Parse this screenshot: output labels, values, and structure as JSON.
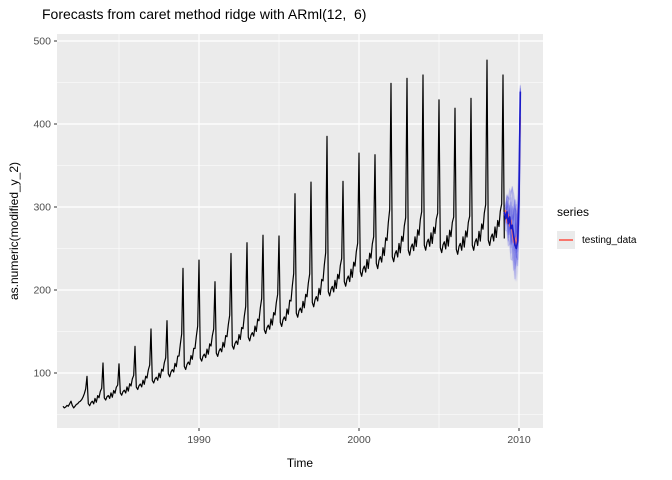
{
  "title": "Forecasts from caret method ridge with ARml(12,  6)",
  "axes": {
    "x": {
      "label": "Time",
      "ticks": [
        1990,
        2000,
        2010
      ],
      "minor_ticks": [
        1985,
        1995,
        2005
      ],
      "domain": [
        1981.1,
        2011.5
      ]
    },
    "y": {
      "label": "as.numeric(modified_y_2)",
      "ticks": [
        100,
        200,
        300,
        400,
        500
      ],
      "minor_ticks": [
        50,
        150,
        250,
        350,
        450
      ],
      "domain": [
        34,
        508
      ]
    }
  },
  "legend": {
    "title": "series",
    "items": [
      {
        "label": "testing_data",
        "color": "#F8766D"
      }
    ]
  },
  "colors": {
    "panel_background": "#EBEBEB",
    "grid": "#FFFFFF",
    "axis_text": "#4D4D4D",
    "tick_mark": "#333333",
    "observed_line": "#000000",
    "testing_line": "#F8766D",
    "forecast_median_line": "#1A1AC8",
    "forecast_cloud": "#5A5AE8"
  },
  "chart_data": {
    "type": "line",
    "description": "Monthly seasonal time series (black) from mid-1981 to early 2009 with sharp annual peaks, plus simulated forecast cloud (blue), forecast median (dark blue) and testing data (red) from 2009 to 2010.1",
    "series_observed": {
      "name": "observed",
      "color": "#000000",
      "start": 1981.5,
      "initial_monthly": [
        60,
        58,
        59,
        61,
        60,
        63,
        66,
        61,
        58,
        60,
        62,
        63,
        65,
        66,
        68,
        71,
        75,
        81
      ],
      "yearly_anchors": [
        {
          "year": 1983,
          "peak": 96,
          "trough": 63,
          "ramp": 0.38
        },
        {
          "year": 1984,
          "peak": 112,
          "trough": 70,
          "ramp": 0.38
        },
        {
          "year": 1985,
          "peak": 111,
          "trough": 76,
          "ramp": 0.38
        },
        {
          "year": 1986,
          "peak": 132,
          "trough": 83,
          "ramp": 0.38
        },
        {
          "year": 1987,
          "peak": 153,
          "trough": 91,
          "ramp": 0.38
        },
        {
          "year": 1988,
          "peak": 163,
          "trough": 99,
          "ramp": 0.38
        },
        {
          "year": 1989,
          "peak": 226,
          "trough": 108,
          "ramp": 0.38
        },
        {
          "year": 1990,
          "peak": 236,
          "trough": 118,
          "ramp": 0.38
        },
        {
          "year": 1991,
          "peak": 210,
          "trough": 124,
          "ramp": 0.38
        },
        {
          "year": 1992,
          "peak": 244,
          "trough": 133,
          "ramp": 0.38
        },
        {
          "year": 1993,
          "peak": 257,
          "trough": 143,
          "ramp": 0.38
        },
        {
          "year": 1994,
          "peak": 266,
          "trough": 152,
          "ramp": 0.38
        },
        {
          "year": 1995,
          "peak": 265,
          "trough": 161,
          "ramp": 0.38
        },
        {
          "year": 1996,
          "peak": 316,
          "trough": 172,
          "ramp": 0.3
        },
        {
          "year": 1997,
          "peak": 330,
          "trough": 185,
          "ramp": 0.3
        },
        {
          "year": 1998,
          "peak": 385,
          "trough": 198,
          "ramp": 0.3
        },
        {
          "year": 1999,
          "peak": 331,
          "trough": 210,
          "ramp": 0.3
        },
        {
          "year": 2000,
          "peak": 365,
          "trough": 222,
          "ramp": 0.3
        },
        {
          "year": 2001,
          "peak": 363,
          "trough": 232,
          "ramp": 0.3
        },
        {
          "year": 2002,
          "peak": 449,
          "trough": 240,
          "ramp": 0.22
        },
        {
          "year": 2003,
          "peak": 455,
          "trough": 248,
          "ramp": 0.22
        },
        {
          "year": 2004,
          "peak": 459,
          "trough": 254,
          "ramp": 0.22
        },
        {
          "year": 2005,
          "peak": 429,
          "trough": 251,
          "ramp": 0.22
        },
        {
          "year": 2006,
          "peak": 419,
          "trough": 249,
          "ramp": 0.22
        },
        {
          "year": 2007,
          "peak": 431,
          "trough": 254,
          "ramp": 0.22
        },
        {
          "year": 2008,
          "peak": 477,
          "trough": 260,
          "ramp": 0.22
        },
        {
          "year": 2009,
          "peak": 459,
          "trough": 262,
          "ramp": 0.22
        }
      ]
    },
    "forecast": {
      "x_start": 2009.083,
      "step": 0.0833,
      "median": [
        294,
        286,
        294,
        280,
        288,
        274,
        278,
        265,
        254,
        250,
        259,
        310,
        439
      ],
      "lo80": [
        288,
        277,
        282,
        265,
        271,
        255,
        257,
        243,
        232,
        227,
        237,
        284,
        400
      ],
      "hi80": [
        300,
        296,
        306,
        296,
        305,
        295,
        302,
        291,
        282,
        278,
        288,
        334,
        444
      ],
      "lo95": [
        282,
        270,
        271,
        253,
        255,
        237,
        236,
        223,
        213,
        210,
        222,
        262,
        368
      ],
      "hi95": [
        306,
        305,
        317,
        311,
        321,
        317,
        325,
        316,
        309,
        305,
        317,
        357,
        448
      ],
      "n_sample_paths": 13
    },
    "testing_data": {
      "x_start": 2009.083,
      "step": 0.0833,
      "values": [
        290,
        296,
        281,
        291,
        277,
        284,
        268,
        257,
        263,
        255,
        270,
        320,
        409
      ]
    }
  }
}
